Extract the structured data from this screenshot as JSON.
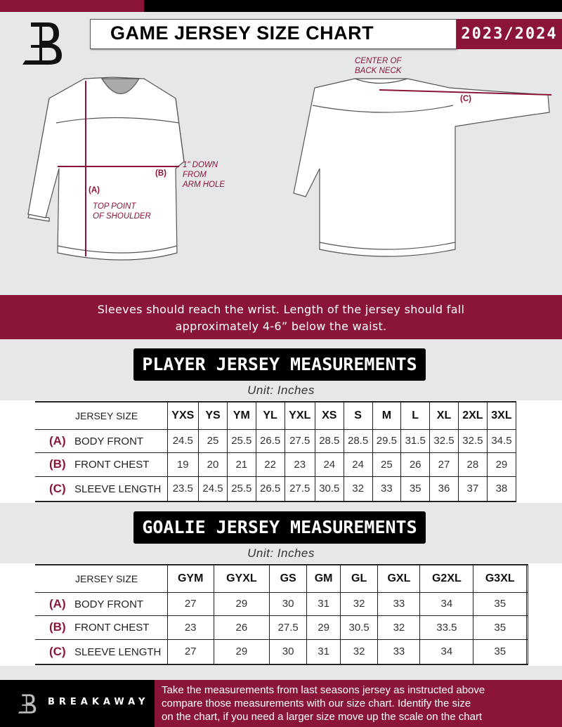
{
  "header": {
    "title": "GAME JERSEY SIZE CHART",
    "season": "2023/2024",
    "logo_letter": "B"
  },
  "diagram": {
    "front_notes": {
      "b_label": "(B)",
      "b_note": [
        "1\" DOWN",
        "FROM",
        "ARM HOLE"
      ],
      "a_label": "(A)",
      "a_note": [
        "TOP POINT",
        "OF SHOULDER"
      ]
    },
    "back_notes": {
      "c_label": "(C)",
      "c_note": [
        "CENTER OF",
        "BACK NECK"
      ]
    }
  },
  "instruction": [
    "Sleeves should reach the wrist. Length of the jersey should fall",
    "approximately 4-6” below the waist."
  ],
  "player": {
    "title": "PLAYER JERSEY MEASUREMENTS",
    "unit": "Unit: Inches",
    "size_header": "JERSEY SIZE",
    "sizes": [
      "YXS",
      "YS",
      "YM",
      "YL",
      "YXL",
      "XS",
      "S",
      "M",
      "L",
      "XL",
      "2XL",
      "3XL"
    ],
    "rows": [
      {
        "letter": "(A)",
        "label": "BODY FRONT",
        "values": [
          "24.5",
          "25",
          "25.5",
          "26.5",
          "27.5",
          "28.5",
          "28.5",
          "29.5",
          "31.5",
          "32.5",
          "32.5",
          "34.5"
        ]
      },
      {
        "letter": "(B)",
        "label": "FRONT CHEST",
        "values": [
          "19",
          "20",
          "21",
          "22",
          "23",
          "24",
          "24",
          "25",
          "26",
          "27",
          "28",
          "29"
        ]
      },
      {
        "letter": "(C)",
        "label": "SLEEVE LENGTH",
        "values": [
          "23.5",
          "24.5",
          "25.5",
          "26.5",
          "27.5",
          "30.5",
          "32",
          "33",
          "35",
          "36",
          "37",
          "38"
        ]
      }
    ]
  },
  "goalie": {
    "title": "GOALIE JERSEY MEASUREMENTS",
    "unit": "Unit: Inches",
    "size_header": "JERSEY SIZE",
    "sizes": [
      "GYM",
      "GYXL",
      "GS",
      "GM",
      "GL",
      "GXL",
      "G2XL",
      "G3XL",
      ""
    ],
    "rows": [
      {
        "letter": "(A)",
        "label": "BODY FRONT",
        "values": [
          "27",
          "29",
          "30",
          "31",
          "32",
          "33",
          "34",
          "35",
          ""
        ]
      },
      {
        "letter": "(B)",
        "label": "FRONT CHEST",
        "values": [
          "23",
          "26",
          "27.5",
          "29",
          "30.5",
          "32",
          "33.5",
          "35",
          ""
        ]
      },
      {
        "letter": "(C)",
        "label": "SLEEVE LENGTH",
        "values": [
          "27",
          "29",
          "30",
          "31",
          "32",
          "33",
          "34",
          "35",
          ""
        ]
      }
    ]
  },
  "footer": {
    "brand": "BREAKAWAY",
    "text": [
      "Take the measurements from last seasons jersey as instructed above",
      "compare those measurements  with our size chart. Identify the size",
      "on the chart, if you need a larger size move up the scale on the chart"
    ]
  },
  "colors": {
    "accent": "#8a1538",
    "background": "#e6e7e8"
  }
}
